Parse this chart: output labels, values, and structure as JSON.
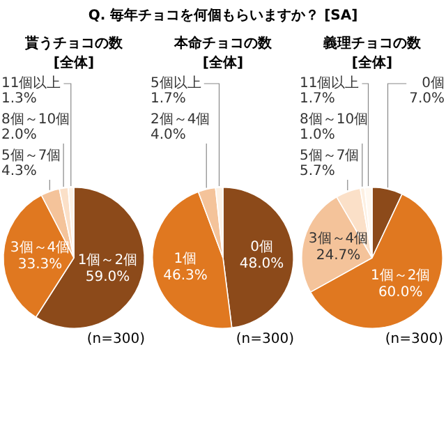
{
  "chart_data": [
    {
      "type": "pie",
      "title": "貰うチョコの数",
      "subtitle": "[全体]",
      "annotations": [
        "Q. 毎年チョコを何個もらいますか？ [SA]",
        "(n=300)"
      ],
      "categories": [
        "1個～2個",
        "3個～4個",
        "5個～7個",
        "8個～10個",
        "11個以上"
      ],
      "values": [
        59.0,
        33.3,
        4.3,
        2.0,
        1.3
      ],
      "value_labels": [
        "59.0%",
        "33.3%",
        "4.3%",
        "2.0%",
        "1.3%"
      ],
      "colors": [
        "#8c4a1a",
        "#e07820",
        "#f4c39a",
        "#fbe0c8",
        "#fdf2e6"
      ]
    },
    {
      "type": "pie",
      "title": "本命チョコの数",
      "subtitle": "[全体]",
      "annotations": [
        "(n=300)"
      ],
      "categories": [
        "0個",
        "1個",
        "2個～4個",
        "5個以上"
      ],
      "values": [
        48.0,
        46.3,
        4.0,
        1.7
      ],
      "value_labels": [
        "48.0%",
        "46.3%",
        "4.0%",
        "1.7%"
      ],
      "colors": [
        "#8c4a1a",
        "#e07820",
        "#f4c39a",
        "#fdf2e6"
      ]
    },
    {
      "type": "pie",
      "title": "義理チョコの数",
      "subtitle": "[全体]",
      "annotations": [
        "(n=300)"
      ],
      "categories": [
        "0個",
        "1個～2個",
        "3個～4個",
        "5個～7個",
        "8個～10個",
        "11個以上"
      ],
      "values": [
        7.0,
        60.0,
        24.7,
        5.7,
        1.0,
        1.7
      ],
      "value_labels": [
        "7.0%",
        "60.0%",
        "24.7%",
        "5.7%",
        "1.0%",
        "1.7%"
      ],
      "colors": [
        "#8c4a1a",
        "#e07820",
        "#f4c39a",
        "#fbe0c8",
        "#fdf0e2",
        "#fff8f0"
      ]
    }
  ]
}
